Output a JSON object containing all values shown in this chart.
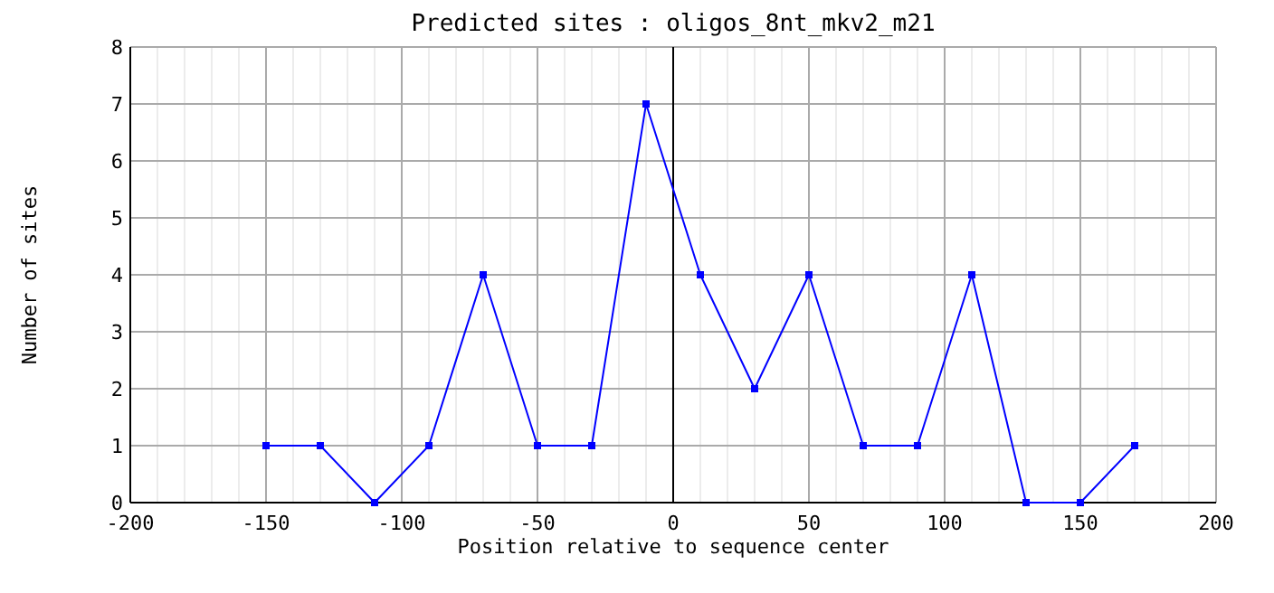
{
  "chart_data": {
    "type": "line",
    "title": "Predicted sites : oligos_8nt_mkv2_m21",
    "xlabel": "Position relative to sequence center",
    "ylabel": "Number of sites",
    "x": [
      -150,
      -130,
      -110,
      -90,
      -70,
      -50,
      -30,
      -10,
      10,
      30,
      50,
      70,
      90,
      110,
      130,
      150,
      170
    ],
    "series": [
      {
        "color": "#0000ff",
        "values": [
          1,
          1,
          0,
          1,
          4,
          1,
          1,
          7,
          4,
          2,
          4,
          1,
          1,
          4,
          0,
          0,
          1
        ]
      }
    ],
    "xlim": [
      -200,
      200
    ],
    "xticks": [
      -200,
      -150,
      -100,
      -50,
      0,
      50,
      100,
      150,
      200
    ],
    "ylim": [
      0,
      8
    ],
    "yticks": [
      0,
      1,
      2,
      3,
      4,
      5,
      6,
      7,
      8
    ],
    "grid": true,
    "marker": "square",
    "line_style": "solid",
    "ref_lines": [
      {
        "axis": "x",
        "value": 0,
        "color": "#000000"
      }
    ]
  }
}
